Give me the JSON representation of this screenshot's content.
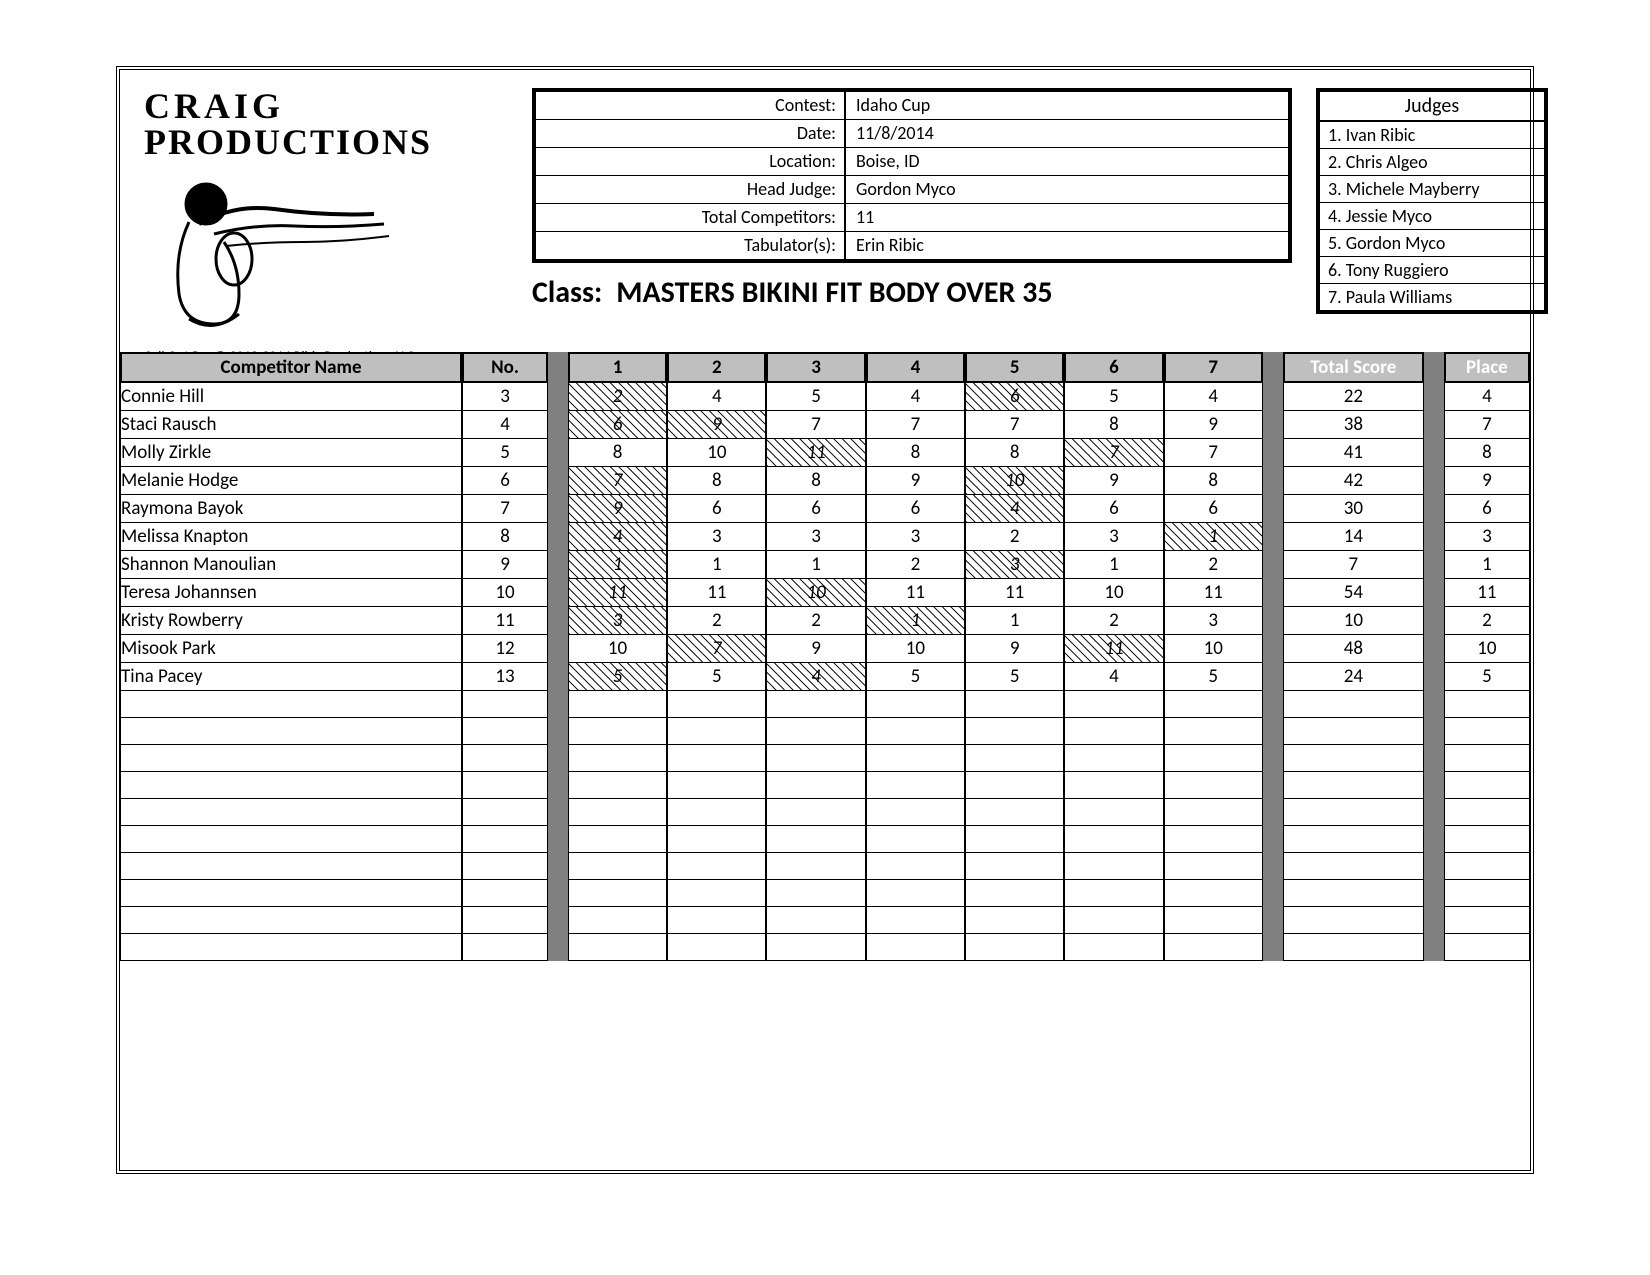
{
  "logo": {
    "line1": "CRAIG",
    "line2": "PRODUCTIONS"
  },
  "copyright": "Call Out Pro © 2012-2014 Ribic Productions LLC",
  "contest": {
    "rows": [
      {
        "label": "Contest:",
        "value": "Idaho Cup"
      },
      {
        "label": "Date:",
        "value": "11/8/2014"
      },
      {
        "label": "Location:",
        "value": "Boise, ID"
      },
      {
        "label": "Head Judge:",
        "value": "Gordon Myco"
      },
      {
        "label": "Total Competitors:",
        "value": "11"
      },
      {
        "label": "Tabulator(s):",
        "value": "Erin Ribic"
      }
    ]
  },
  "class_label": "Class:",
  "class_value": "MASTERS BIKINI FIT BODY OVER 35",
  "judges": {
    "title": "Judges",
    "list": [
      "1.  Ivan Ribic",
      "2.  Chris Algeo",
      "3.  Michele Mayberry",
      "4.  Jessie Myco",
      "5.  Gordon Myco",
      "6.  Tony Ruggiero",
      "7.  Paula Williams"
    ]
  },
  "table": {
    "columns": {
      "name": "Competitor Name",
      "no": "No.",
      "judge": [
        "1",
        "2",
        "3",
        "4",
        "5",
        "6",
        "7"
      ],
      "total": "Total Score",
      "place": "Place"
    },
    "colwidths": {
      "name": 310,
      "no": 78,
      "judge": 90,
      "total": 128,
      "place": 78
    },
    "emptyRowsAfter": 10,
    "rows": [
      {
        "name": "Connie Hill",
        "no": "3",
        "scores": [
          {
            "v": "2",
            "x": true
          },
          {
            "v": "4"
          },
          {
            "v": "5"
          },
          {
            "v": "4"
          },
          {
            "v": "6",
            "x": true
          },
          {
            "v": "5"
          },
          {
            "v": "4"
          }
        ],
        "total": "22",
        "place": "4"
      },
      {
        "name": "Staci Rausch",
        "no": "4",
        "scores": [
          {
            "v": "6",
            "x": true
          },
          {
            "v": "9",
            "x": true
          },
          {
            "v": "7"
          },
          {
            "v": "7"
          },
          {
            "v": "7"
          },
          {
            "v": "8"
          },
          {
            "v": "9"
          }
        ],
        "total": "38",
        "place": "7"
      },
      {
        "name": "Molly Zirkle",
        "no": "5",
        "scores": [
          {
            "v": "8"
          },
          {
            "v": "10"
          },
          {
            "v": "11",
            "x": true
          },
          {
            "v": "8"
          },
          {
            "v": "8"
          },
          {
            "v": "7",
            "x": true
          },
          {
            "v": "7"
          }
        ],
        "total": "41",
        "place": "8"
      },
      {
        "name": "Melanie Hodge",
        "no": "6",
        "scores": [
          {
            "v": "7",
            "x": true
          },
          {
            "v": "8"
          },
          {
            "v": "8"
          },
          {
            "v": "9"
          },
          {
            "v": "10",
            "x": true
          },
          {
            "v": "9"
          },
          {
            "v": "8"
          }
        ],
        "total": "42",
        "place": "9"
      },
      {
        "name": "Raymona Bayok",
        "no": "7",
        "scores": [
          {
            "v": "9",
            "x": true
          },
          {
            "v": "6"
          },
          {
            "v": "6"
          },
          {
            "v": "6"
          },
          {
            "v": "4",
            "x": true
          },
          {
            "v": "6"
          },
          {
            "v": "6"
          }
        ],
        "total": "30",
        "place": "6"
      },
      {
        "name": "Melissa Knapton",
        "no": "8",
        "scores": [
          {
            "v": "4",
            "x": true
          },
          {
            "v": "3"
          },
          {
            "v": "3"
          },
          {
            "v": "3"
          },
          {
            "v": "2"
          },
          {
            "v": "3"
          },
          {
            "v": "1",
            "x": true
          }
        ],
        "total": "14",
        "place": "3"
      },
      {
        "name": "Shannon Manoulian",
        "no": "9",
        "scores": [
          {
            "v": "1",
            "x": true
          },
          {
            "v": "1"
          },
          {
            "v": "1"
          },
          {
            "v": "2"
          },
          {
            "v": "3",
            "x": true
          },
          {
            "v": "1"
          },
          {
            "v": "2"
          }
        ],
        "total": "7",
        "place": "1"
      },
      {
        "name": "Teresa Johannsen",
        "no": "10",
        "scores": [
          {
            "v": "11",
            "x": true
          },
          {
            "v": "11"
          },
          {
            "v": "10",
            "x": true
          },
          {
            "v": "11"
          },
          {
            "v": "11"
          },
          {
            "v": "10"
          },
          {
            "v": "11"
          }
        ],
        "total": "54",
        "place": "11"
      },
      {
        "name": "Kristy Rowberry",
        "no": "11",
        "scores": [
          {
            "v": "3",
            "x": true
          },
          {
            "v": "2"
          },
          {
            "v": "2"
          },
          {
            "v": "1",
            "x": true
          },
          {
            "v": "1"
          },
          {
            "v": "2"
          },
          {
            "v": "3"
          }
        ],
        "total": "10",
        "place": "2"
      },
      {
        "name": "Misook Park",
        "no": "12",
        "scores": [
          {
            "v": "10"
          },
          {
            "v": "7",
            "x": true
          },
          {
            "v": "9"
          },
          {
            "v": "10"
          },
          {
            "v": "9"
          },
          {
            "v": "11",
            "x": true
          },
          {
            "v": "10"
          }
        ],
        "total": "48",
        "place": "10"
      },
      {
        "name": "Tina Pacey",
        "no": "13",
        "scores": [
          {
            "v": "5",
            "x": true
          },
          {
            "v": "5"
          },
          {
            "v": "4",
            "x": true
          },
          {
            "v": "5"
          },
          {
            "v": "5"
          },
          {
            "v": "4"
          },
          {
            "v": "5"
          }
        ],
        "total": "24",
        "place": "5"
      }
    ]
  }
}
